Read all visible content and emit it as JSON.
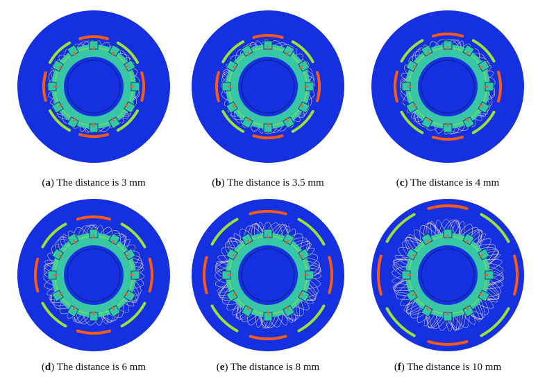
{
  "figure": {
    "panels": [
      {
        "letter": "a",
        "caption": "The distance is 3 mm",
        "distance_mm": 3
      },
      {
        "letter": "b",
        "caption": "The distance is 3.5 mm",
        "distance_mm": 3.5
      },
      {
        "letter": "c",
        "caption": "The distance is 4 mm",
        "distance_mm": 4
      },
      {
        "letter": "d",
        "caption": "The distance is 6 mm",
        "distance_mm": 6
      },
      {
        "letter": "e",
        "caption": "The distance is 8 mm",
        "distance_mm": 8
      },
      {
        "letter": "f",
        "caption": "The distance is 10 mm",
        "distance_mm": 10
      }
    ]
  },
  "colors": {
    "background_field": "#1530e0",
    "low_field": "#1f49f0",
    "mid_field": "#3cd8a0",
    "high_field": "#9ae23a",
    "peak_field": "#ff5a10",
    "field_lines": "#ffe8c8",
    "pole": "#30c8a8"
  }
}
